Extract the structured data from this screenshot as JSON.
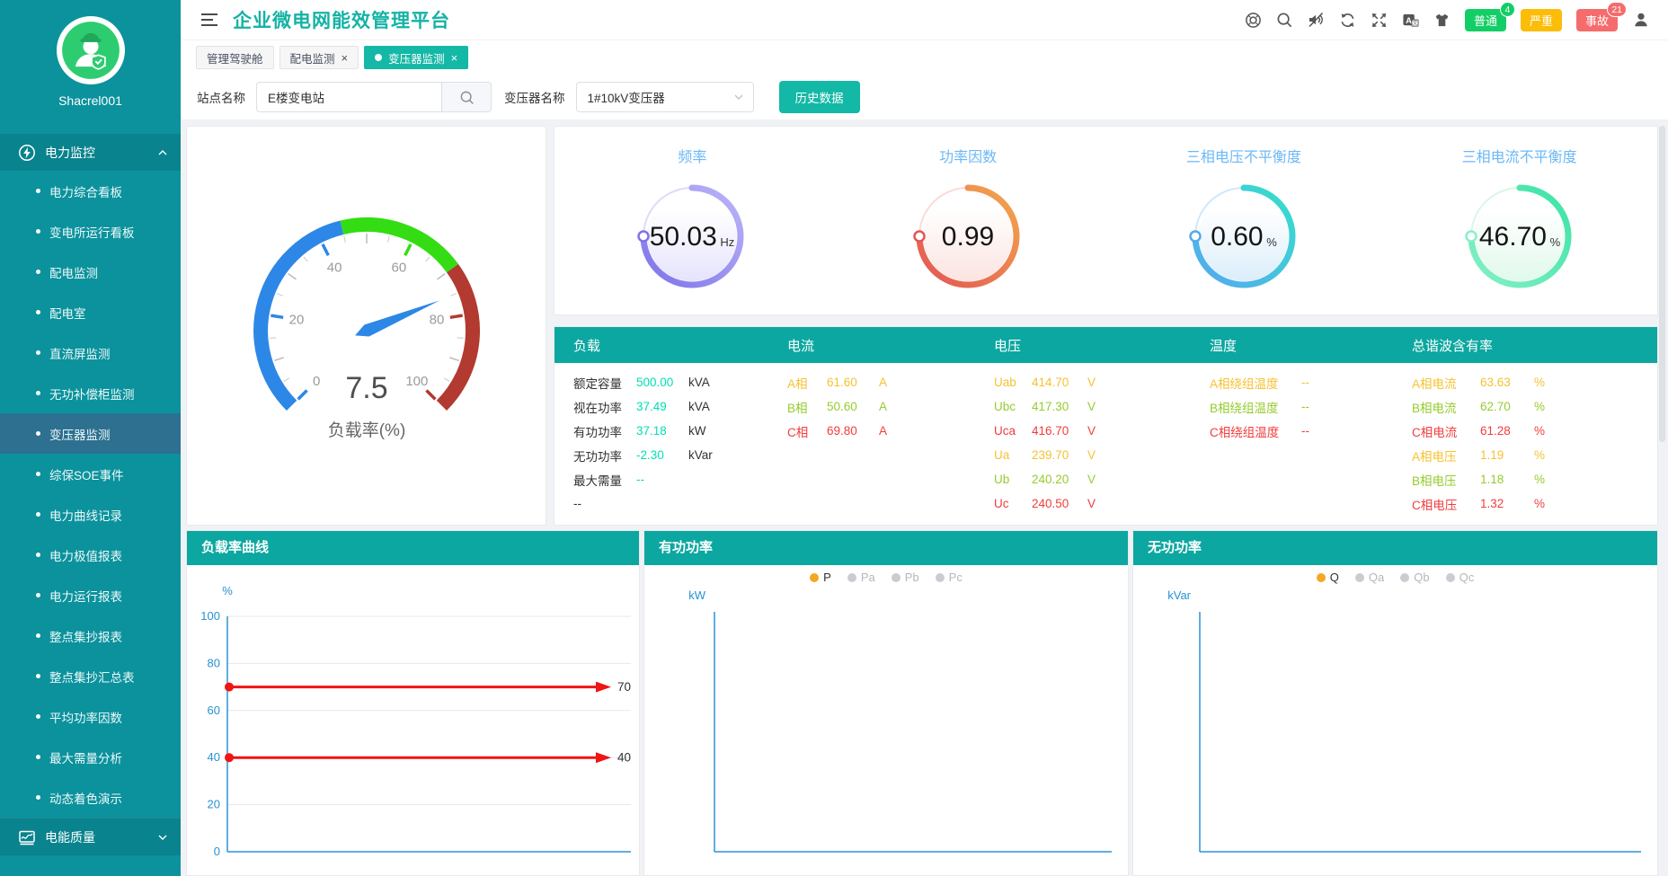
{
  "app": {
    "title": "企业微电网能效管理平台",
    "user": "Shacrel001"
  },
  "header": {
    "icons": [
      "help-icon",
      "search-icon",
      "mute-icon",
      "refresh-icon",
      "fullscreen-icon",
      "translate-icon",
      "theme-icon"
    ],
    "alarm_buttons": [
      {
        "label": "普通",
        "badge": "4",
        "bg": "#13ce66",
        "badge_bg": "#13ce66"
      },
      {
        "label": "严重",
        "badge": "",
        "bg": "#fbbd08",
        "badge_bg": ""
      },
      {
        "label": "事故",
        "badge": "21",
        "bg": "#f56c6c",
        "badge_bg": "#f56c6c"
      }
    ]
  },
  "tabs": [
    {
      "label": "管理驾驶舱",
      "closable": false,
      "active": false
    },
    {
      "label": "配电监测",
      "closable": true,
      "active": false
    },
    {
      "label": "变压器监测",
      "closable": true,
      "active": true
    }
  ],
  "filter": {
    "site_label": "站点名称",
    "site_value": "E楼变电站",
    "transformer_label": "变压器名称",
    "transformer_value": "1#10kV变压器",
    "history_button": "历史数据"
  },
  "sidebar": {
    "groups": [
      {
        "label": "电力监控",
        "icon": "power-monitor-icon",
        "expanded": true,
        "items": [
          {
            "label": "电力综合看板",
            "active": false
          },
          {
            "label": "变电所运行看板",
            "active": false
          },
          {
            "label": "配电监测",
            "active": false
          },
          {
            "label": "配电室",
            "active": false
          },
          {
            "label": "直流屏监测",
            "active": false
          },
          {
            "label": "无功补偿柜监测",
            "active": false
          },
          {
            "label": "变压器监测",
            "active": true
          },
          {
            "label": "综保SOE事件",
            "active": false
          },
          {
            "label": "电力曲线记录",
            "active": false
          },
          {
            "label": "电力极值报表",
            "active": false
          },
          {
            "label": "电力运行报表",
            "active": false
          },
          {
            "label": "整点集抄报表",
            "active": false
          },
          {
            "label": "整点集抄汇总表",
            "active": false
          },
          {
            "label": "平均功率因数",
            "active": false
          },
          {
            "label": "最大需量分析",
            "active": false
          },
          {
            "label": "动态着色演示",
            "active": false
          }
        ]
      },
      {
        "label": "电能质量",
        "icon": "power-quality-icon",
        "expanded": false,
        "items": []
      }
    ]
  },
  "table": {
    "headers": [
      "负载",
      "电流",
      "电压",
      "温度",
      "总谐波含有率"
    ],
    "value_color": "#00dfb5",
    "load_rows": [
      {
        "label": "额定容量",
        "value": "500.00",
        "unit": "kVA"
      },
      {
        "label": "视在功率",
        "value": "37.49",
        "unit": "kVA"
      },
      {
        "label": "有功功率",
        "value": "37.18",
        "unit": "kW"
      },
      {
        "label": "无功功率",
        "value": "-2.30",
        "unit": "kVar"
      },
      {
        "label": "最大需量",
        "value": "--",
        "unit": ""
      },
      {
        "label": "--",
        "value": "",
        "unit": ""
      }
    ],
    "current_rows": [
      {
        "label": "A相",
        "value": "61.60",
        "unit": "A",
        "color": "#f5c231"
      },
      {
        "label": "B相",
        "value": "50.60",
        "unit": "A",
        "color": "#95cc2e"
      },
      {
        "label": "C相",
        "value": "69.80",
        "unit": "A",
        "color": "#f23c3c"
      }
    ],
    "voltage_rows": [
      {
        "label": "Uab",
        "value": "414.70",
        "unit": "V",
        "color": "#f5c231"
      },
      {
        "label": "Ubc",
        "value": "417.30",
        "unit": "V",
        "color": "#95cc2e"
      },
      {
        "label": "Uca",
        "value": "416.70",
        "unit": "V",
        "color": "#f23c3c"
      },
      {
        "label": "Ua",
        "value": "239.70",
        "unit": "V",
        "color": "#f5c231"
      },
      {
        "label": "Ub",
        "value": "240.20",
        "unit": "V",
        "color": "#95cc2e"
      },
      {
        "label": "Uc",
        "value": "240.50",
        "unit": "V",
        "color": "#f23c3c"
      }
    ],
    "temperature_rows": [
      {
        "label": "A相绕组温度",
        "value": "--",
        "unit": "",
        "color": "#f5c231"
      },
      {
        "label": "B相绕组温度",
        "value": "--",
        "unit": "",
        "color": "#95cc2e"
      },
      {
        "label": "C相绕组温度",
        "value": "--",
        "unit": "",
        "color": "#f23c3c"
      }
    ],
    "thd_rows": [
      {
        "label": "A相电流",
        "value": "63.63",
        "unit": "%",
        "color": "#f5c231"
      },
      {
        "label": "B相电流",
        "value": "62.70",
        "unit": "%",
        "color": "#95cc2e"
      },
      {
        "label": "C相电流",
        "value": "61.28",
        "unit": "%",
        "color": "#f23c3c"
      },
      {
        "label": "A相电压",
        "value": "1.19",
        "unit": "%",
        "color": "#f5c231"
      },
      {
        "label": "B相电压",
        "value": "1.18",
        "unit": "%",
        "color": "#95cc2e"
      },
      {
        "label": "C相电压",
        "value": "1.32",
        "unit": "%",
        "color": "#f23c3c"
      }
    ]
  },
  "chart_data": [
    {
      "type": "gauge",
      "label": "负载率(%)",
      "value": 7.5,
      "min": 0,
      "max": 100,
      "tick_labels": [
        0,
        20,
        40,
        60,
        80,
        100
      ],
      "segments": [
        {
          "to": 45,
          "color": "#2d87e6"
        },
        {
          "to": 70,
          "color": "#34dd13"
        },
        {
          "to": 100,
          "color": "#b23a31"
        }
      ],
      "needle_angle_deg": 22.5,
      "needle_color": "#2d87e6"
    },
    {
      "type": "ring",
      "title": "频率",
      "value": "50.03",
      "unit": "Hz",
      "ring_from": "#bcb6f8",
      "ring_to": "#7d72ea",
      "tint": "#d5d1fa"
    },
    {
      "type": "ring",
      "title": "功率因数",
      "value": "0.99",
      "unit": "",
      "ring_from": "#f3a84c",
      "ring_to": "#e25555",
      "tint": "#f8d2cc"
    },
    {
      "type": "ring",
      "title": "三相电压不平衡度",
      "value": "0.60",
      "unit": "%",
      "ring_from": "#35e0cb",
      "ring_to": "#55a8f0",
      "tint": "#c3e2f8"
    },
    {
      "type": "ring",
      "title": "三相电流不平衡度",
      "value": "46.70",
      "unit": "%",
      "ring_from": "#3be3a4",
      "ring_to": "#86f0c6",
      "tint": "#cdf5df"
    },
    {
      "type": "line",
      "title": "负载率曲线",
      "ylabel": "%",
      "ylim": [
        0,
        100
      ],
      "yticks": [
        0,
        20,
        40,
        60,
        80,
        100
      ],
      "series": [],
      "marker_color": "#f01414",
      "markers": [
        {
          "value": 70,
          "label": "70"
        },
        {
          "value": 40,
          "label": "40"
        }
      ]
    },
    {
      "type": "line",
      "title": "有功功率",
      "ylabel": "kW",
      "series": [],
      "legend": [
        {
          "label": "P",
          "active": true
        },
        {
          "label": "Pa",
          "active": false
        },
        {
          "label": "Pb",
          "active": false
        },
        {
          "label": "Pc",
          "active": false
        }
      ]
    },
    {
      "type": "line",
      "title": "无功功率",
      "ylabel": "kVar",
      "series": [],
      "legend": [
        {
          "label": "Q",
          "active": true
        },
        {
          "label": "Qa",
          "active": false
        },
        {
          "label": "Qb",
          "active": false
        },
        {
          "label": "Qc",
          "active": false
        }
      ]
    }
  ],
  "legend_colors": {
    "active_dot": "#f5a623",
    "inactive_dot": "#c9ccd1",
    "active_text": "#303133",
    "inactive_text": "#b4b7bc"
  }
}
